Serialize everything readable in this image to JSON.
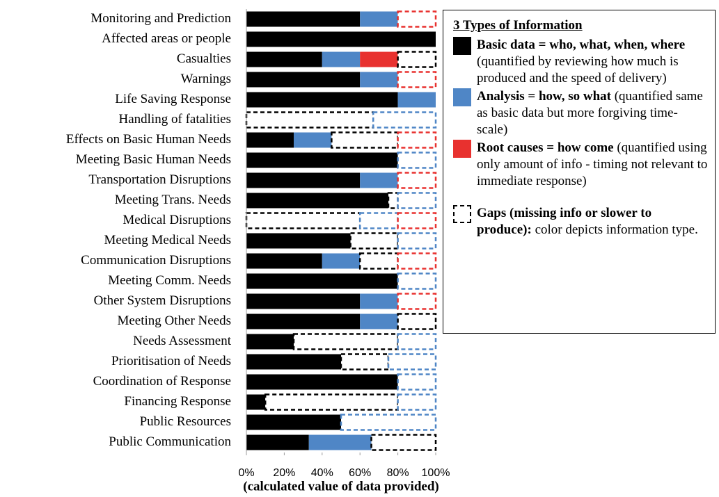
{
  "chart_data": {
    "type": "stacked_barh",
    "categories": [
      "Monitoring and Prediction",
      "Affected areas or people",
      "Casualties",
      "Warnings",
      "Life Saving Response",
      "Handling of fatalities",
      "Effects on Basic Human Needs",
      "Meeting Basic Human Needs",
      "Transportation Disruptions",
      "Meeting Trans. Needs",
      "Medical Disruptions",
      "Meeting Medical Needs",
      "Communication Disruptions",
      "Meeting Comm. Needs",
      "Other System Disruptions",
      "Meeting Other Needs",
      "Needs Assessment",
      "Prioritisation of Needs",
      "Coordination of Response",
      "Financing Response",
      "Public Resources",
      "Public Communication"
    ],
    "series": [
      {
        "name": "Basic data = who, what, when, where",
        "description": "(quantified by reviewing how much is produced and the speed of delivery)",
        "color": "#000000",
        "values": [
          60,
          100,
          40,
          60,
          80,
          0,
          25,
          80,
          60,
          75,
          0,
          55,
          40,
          80,
          60,
          60,
          25,
          50,
          80,
          10,
          50,
          33
        ]
      },
      {
        "name": "Analysis = how, so what",
        "description": "(quantified same as basic data but more forgiving time-scale)",
        "color": "#4f86c6",
        "values": [
          20,
          0,
          20,
          20,
          20,
          0,
          20,
          0,
          20,
          0,
          0,
          0,
          20,
          0,
          20,
          20,
          0,
          0,
          0,
          0,
          0,
          33
        ]
      },
      {
        "name": "Root causes = how come",
        "description": "(quantified using only amount of info - timing not relevant to immediate response)",
        "color": "#e8312f",
        "values": [
          0,
          0,
          20,
          0,
          0,
          0,
          0,
          0,
          0,
          0,
          0,
          0,
          0,
          0,
          0,
          0,
          0,
          0,
          0,
          0,
          0,
          0
        ]
      },
      {
        "color": "#000000",
        "style": "dashed",
        "values": [
          0,
          0,
          20,
          0,
          0,
          67,
          35,
          0,
          0,
          5,
          60,
          25,
          20,
          0,
          0,
          20,
          55,
          25,
          0,
          70,
          0,
          34
        ]
      },
      {
        "color": "#4f86c6",
        "style": "dashed",
        "values": [
          0,
          0,
          0,
          0,
          0,
          33,
          0,
          20,
          0,
          20,
          20,
          20,
          0,
          20,
          0,
          0,
          20,
          25,
          20,
          20,
          50,
          0
        ]
      },
      {
        "color": "#e8312f",
        "style": "dashed",
        "values": [
          20,
          0,
          0,
          20,
          0,
          0,
          20,
          0,
          20,
          0,
          20,
          0,
          20,
          0,
          20,
          0,
          0,
          0,
          0,
          0,
          0,
          0
        ]
      }
    ],
    "xlim": [
      0,
      100
    ],
    "xticks": [
      {
        "value": 0,
        "label": "0%"
      },
      {
        "value": 20,
        "label": "20%"
      },
      {
        "value": 40,
        "label": "40%"
      },
      {
        "value": 60,
        "label": "60%"
      },
      {
        "value": 80,
        "label": "80%"
      },
      {
        "value": 100,
        "label": "100%"
      }
    ],
    "x_label": "(calculated value of data provided)",
    "legend_title": "3 Types of Information",
    "gap_legend": {
      "name": "Gaps (missing info or slower to produce):",
      "description": "color depicts information type."
    }
  }
}
